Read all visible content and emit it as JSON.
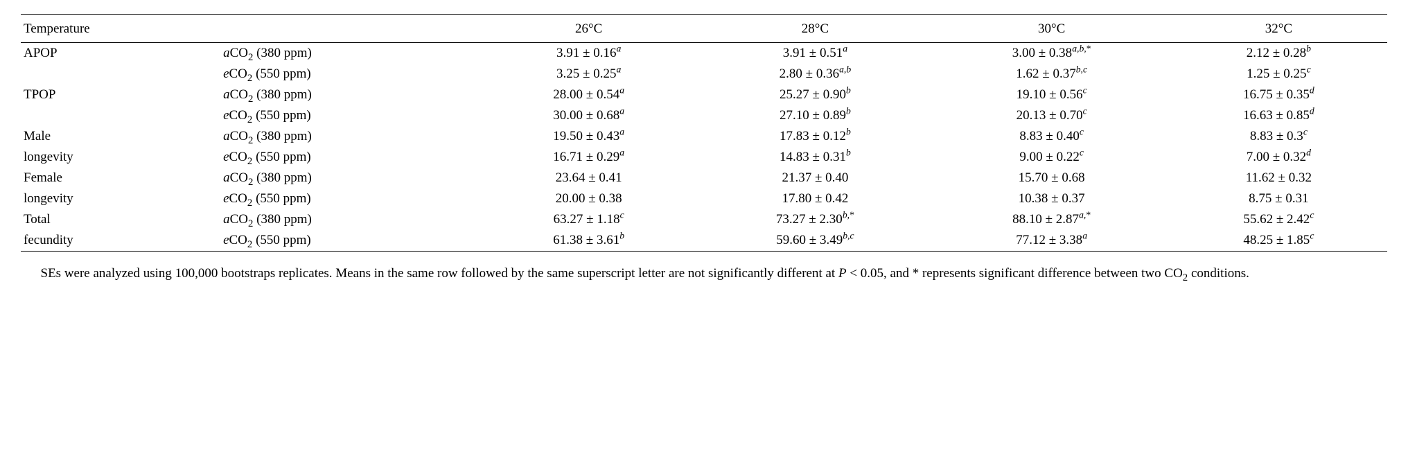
{
  "header": {
    "col0": "Temperature",
    "col1": "",
    "col2": "26°C",
    "col3": "28°C",
    "col4": "30°C",
    "col5": "32°C"
  },
  "labels": {
    "apop": "APOP",
    "tpop": "TPOP",
    "malelong1": "Male",
    "malelong2": "longevity",
    "femlong1": "Female",
    "femlong2": "longevity",
    "totfec1": "Total",
    "totfec2": "fecundity",
    "a_pre": "a",
    "e_pre": "e",
    "co2": "CO",
    "sub2": "2",
    "a_ppm": " (380 ppm)",
    "e_ppm": " (550 ppm)"
  },
  "v": {
    "apop_a_26_base": "3.91 ± 0.16",
    "apop_a_26_sup": "a",
    "apop_a_28_base": "3.91 ± 0.51",
    "apop_a_28_sup": "a",
    "apop_a_30_base": "3.00 ± 0.38",
    "apop_a_30_sup": "a,b,",
    "apop_a_30_star": "*",
    "apop_a_32_base": "2.12 ± 0.28",
    "apop_a_32_sup": "b",
    "apop_e_26_base": "3.25 ± 0.25",
    "apop_e_26_sup": "a",
    "apop_e_28_base": "2.80 ± 0.36",
    "apop_e_28_sup": "a,b",
    "apop_e_30_base": "1.62 ± 0.37",
    "apop_e_30_sup": "b,c",
    "apop_e_32_base": "1.25 ± 0.25",
    "apop_e_32_sup": "c",
    "tpop_a_26_base": "28.00 ± 0.54",
    "tpop_a_26_sup": "a",
    "tpop_a_28_base": "25.27 ± 0.90",
    "tpop_a_28_sup": "b",
    "tpop_a_30_base": "19.10 ± 0.56",
    "tpop_a_30_sup": "c",
    "tpop_a_32_base": "16.75 ± 0.35",
    "tpop_a_32_sup": "d",
    "tpop_e_26_base": "30.00 ± 0.68",
    "tpop_e_26_sup": "a",
    "tpop_e_28_base": "27.10 ± 0.89",
    "tpop_e_28_sup": "b",
    "tpop_e_30_base": "20.13 ± 0.70",
    "tpop_e_30_sup": "c",
    "tpop_e_32_base": "16.63 ± 0.85",
    "tpop_e_32_sup": "d",
    "male_a_26_base": "19.50 ± 0.43",
    "male_a_26_sup": "a",
    "male_a_28_base": "17.83 ± 0.12",
    "male_a_28_sup": "b",
    "male_a_30_base": "8.83 ± 0.40",
    "male_a_30_sup": "c",
    "male_a_32_base": "8.83 ± 0.3",
    "male_a_32_sup": "c",
    "male_e_26_base": "16.71 ± 0.29",
    "male_e_26_sup": "a",
    "male_e_28_base": "14.83 ± 0.31",
    "male_e_28_sup": "b",
    "male_e_30_base": "9.00 ± 0.22",
    "male_e_30_sup": "c",
    "male_e_32_base": "7.00 ± 0.32",
    "male_e_32_sup": "d",
    "fem_a_26_base": "23.64 ± 0.41",
    "fem_a_28_base": "21.37 ± 0.40",
    "fem_a_30_base": "15.70 ± 0.68",
    "fem_a_32_base": "11.62 ± 0.32",
    "fem_e_26_base": "20.00 ± 0.38",
    "fem_e_28_base": "17.80 ± 0.42",
    "fem_e_30_base": "10.38 ± 0.37",
    "fem_e_32_base": "8.75 ± 0.31",
    "tot_a_26_base": "63.27 ± 1.18",
    "tot_a_26_sup": "c",
    "tot_a_28_base": "73.27 ± 2.30",
    "tot_a_28_sup": "b,",
    "tot_a_28_star": "*",
    "tot_a_30_base": "88.10 ± 2.87",
    "tot_a_30_sup": "a,",
    "tot_a_30_star": "*",
    "tot_a_32_base": "55.62 ± 2.42",
    "tot_a_32_sup": "c",
    "tot_e_26_base": "61.38 ± 3.61",
    "tot_e_26_sup": "b",
    "tot_e_28_base": "59.60 ± 3.49",
    "tot_e_28_sup": "b,c",
    "tot_e_30_base": "77.12 ± 3.38",
    "tot_e_30_sup": "a",
    "tot_e_32_base": "48.25 ± 1.85",
    "tot_e_32_sup": "c"
  },
  "footnote": {
    "line1a": "SEs were analyzed using 100,000 bootstraps replicates. Means in the same row followed by the same superscript letter are not significantly different at ",
    "p": "P",
    "line1b": " < 0.05, and * represents significant difference between two CO",
    "sub2": "2",
    "line1c": " conditions."
  },
  "style": {
    "font_family": "Georgia, 'Times New Roman', serif",
    "font_size_pt": 14,
    "text_color": "#000000",
    "background_color": "#ffffff",
    "border_color": "#000000",
    "columns": [
      "label",
      "treatment",
      "26°C",
      "28°C",
      "30°C",
      "32°C"
    ]
  }
}
